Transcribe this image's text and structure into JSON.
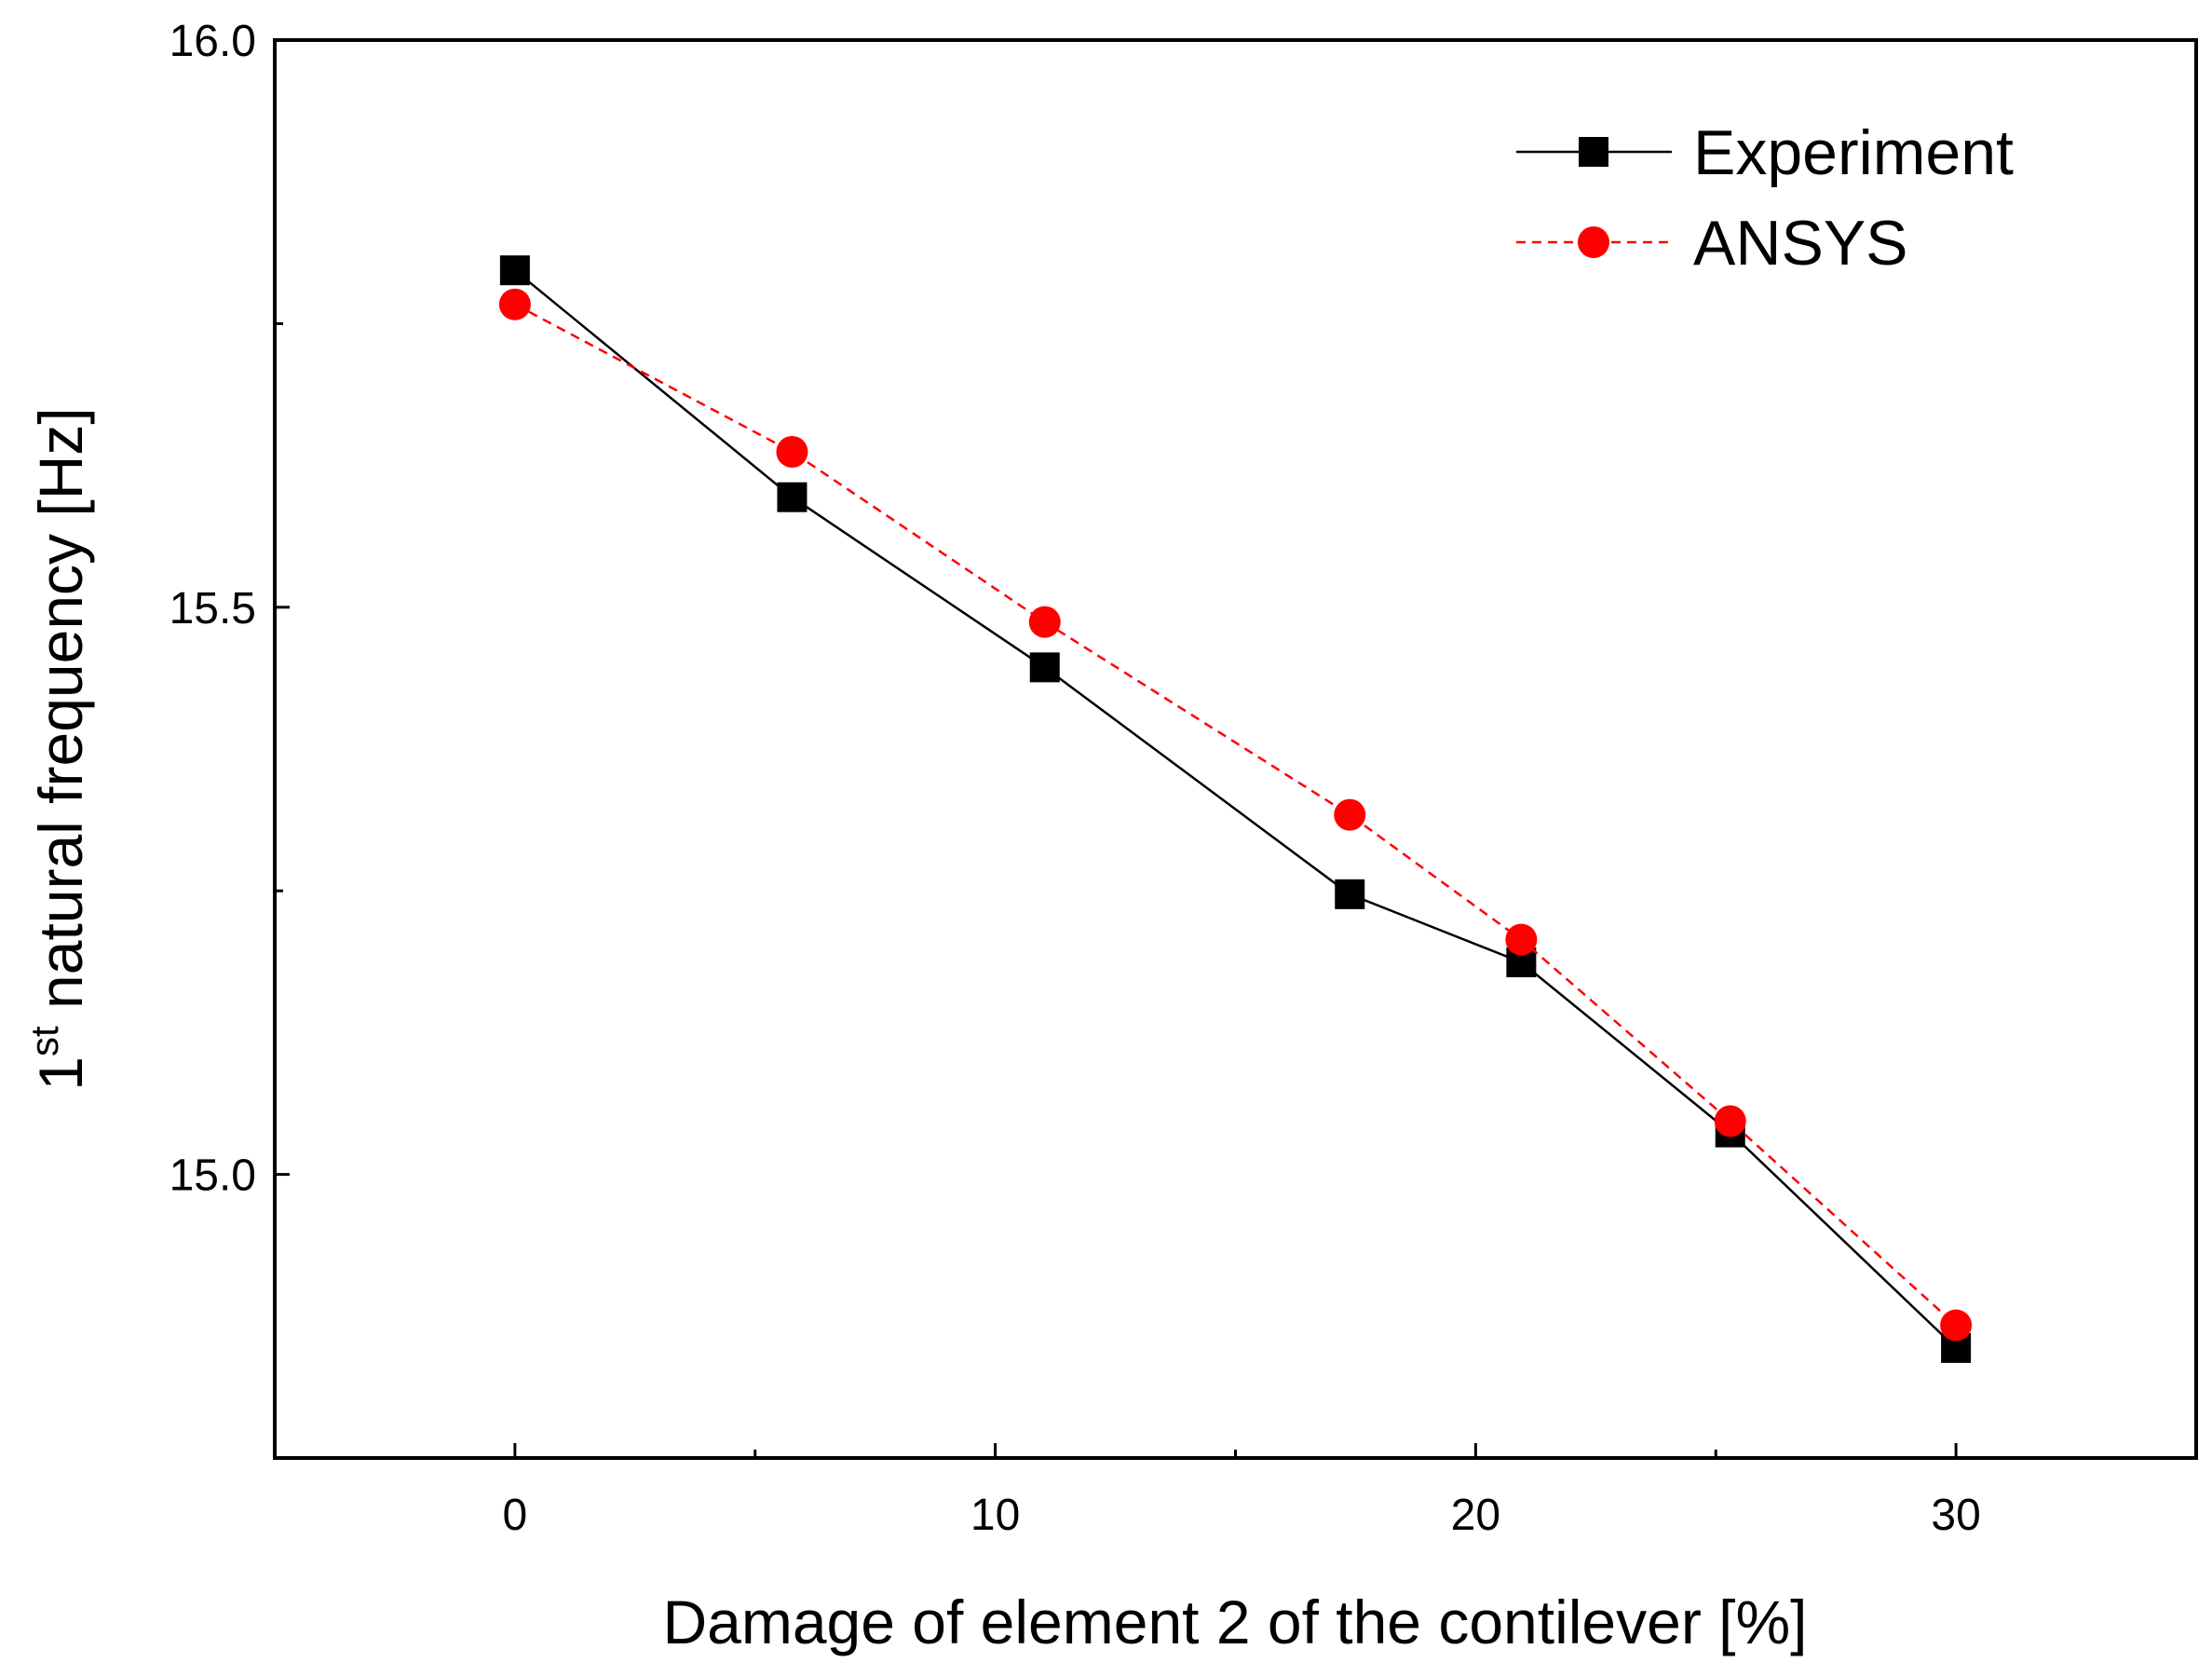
{
  "chart_data": {
    "type": "line",
    "xlabel": "Damage of element 2 of the contilever [%]",
    "ylabel_main": "1",
    "ylabel_sup": "st",
    "ylabel_rest": " natural frequency [Hz]",
    "xlim": [
      -5,
      35
    ],
    "ylim": [
      14.75,
      16.0
    ],
    "x_ticks": [
      0,
      10,
      20,
      30
    ],
    "x_ticks_minor": [
      5,
      15,
      25
    ],
    "y_ticks": [
      15.0,
      15.5,
      16.0
    ],
    "y_tick_labels": [
      "15.0",
      "15.5",
      "16.0"
    ],
    "y_ticks_minor": [
      15.25,
      15.75
    ],
    "grid": false,
    "legend_position": "top-right",
    "series": [
      {
        "name": "Experiment",
        "color": "#000000",
        "marker": "square",
        "line": "solid",
        "x": [
          0,
          5.77,
          11.03,
          17.38,
          20.95,
          25.3,
          30
        ],
        "y": [
          15.797,
          15.597,
          15.447,
          15.247,
          15.187,
          15.037,
          14.847
        ]
      },
      {
        "name": "ANSYS",
        "color": "#ff0000",
        "marker": "circle",
        "line": "dashed",
        "x": [
          0,
          5.77,
          11.03,
          17.38,
          20.95,
          25.3,
          30
        ],
        "y": [
          15.767,
          15.637,
          15.487,
          15.317,
          15.207,
          15.047,
          14.867
        ]
      }
    ]
  }
}
